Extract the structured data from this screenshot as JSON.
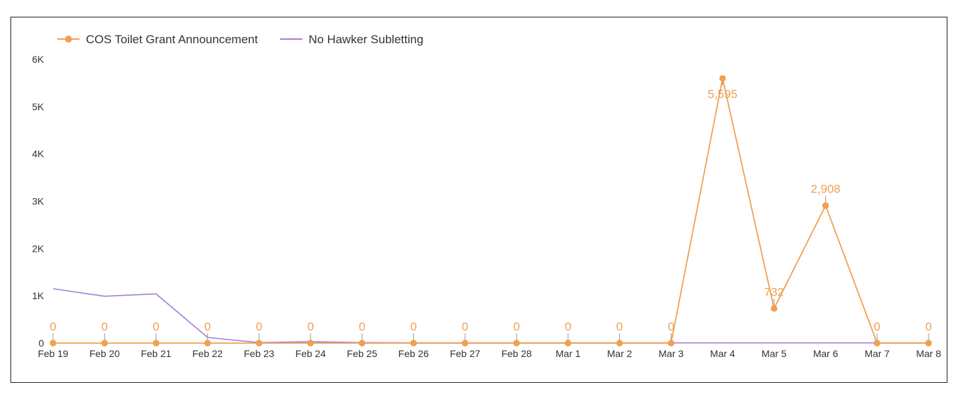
{
  "chart_data": {
    "type": "line",
    "title": "",
    "xlabel": "",
    "ylabel": "",
    "categories": [
      "Feb 19",
      "Feb 20",
      "Feb 21",
      "Feb 22",
      "Feb 23",
      "Feb 24",
      "Feb 25",
      "Feb 26",
      "Feb 27",
      "Feb 28",
      "Mar 1",
      "Mar 2",
      "Mar 3",
      "Mar 4",
      "Mar 5",
      "Mar 6",
      "Mar 7",
      "Mar 8"
    ],
    "ylim": [
      0,
      6000
    ],
    "yticks": [
      0,
      1000,
      2000,
      3000,
      4000,
      5000,
      6000
    ],
    "ytick_labels": [
      "0",
      "1K",
      "2K",
      "3K",
      "4K",
      "5K",
      "6K"
    ],
    "grid": false,
    "legend_position": "top-left",
    "series": [
      {
        "name": "COS Toilet Grant Announcement",
        "color": "#F0A050",
        "markers": true,
        "data_labels": [
          "0",
          "0",
          "0",
          "0",
          "0",
          "0",
          "0",
          "0",
          "0",
          "0",
          "0",
          "0",
          "0",
          "5,595",
          "732",
          "2,908",
          "0",
          "0"
        ],
        "values": [
          0,
          0,
          0,
          0,
          0,
          0,
          0,
          0,
          0,
          0,
          0,
          0,
          0,
          5595,
          732,
          2908,
          0,
          0
        ]
      },
      {
        "name": "No Hawker Subletting",
        "color": "#A77ED6",
        "markers": false,
        "values": [
          1150,
          990,
          1040,
          120,
          10,
          30,
          10,
          5,
          5,
          5,
          5,
          5,
          5,
          5,
          5,
          5,
          5,
          5
        ]
      }
    ]
  }
}
